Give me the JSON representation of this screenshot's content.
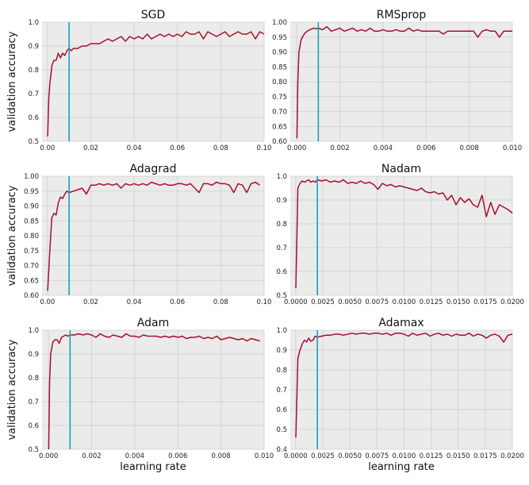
{
  "chart_data": [
    {
      "type": "line",
      "title": "SGD",
      "xlabel": "",
      "ylabel": "validation accuracy",
      "xlim": [
        -0.0025,
        0.1
      ],
      "ylim": [
        0.5,
        1.0
      ],
      "xticks": [
        0.0,
        0.02,
        0.04,
        0.06,
        0.08,
        0.1
      ],
      "xtick_labels": [
        "0.00",
        "0.02",
        "0.04",
        "0.06",
        "0.08",
        "0.10"
      ],
      "yticks": [
        0.5,
        0.6,
        0.7,
        0.8,
        0.9,
        1.0
      ],
      "ytick_labels": [
        "0.5",
        "0.6",
        "0.7",
        "0.8",
        "0.9",
        "1.0"
      ],
      "vline": 0.01,
      "grid": true,
      "x": [
        0.0001,
        0.0006,
        0.0011,
        0.0016,
        0.0021,
        0.003,
        0.004,
        0.005,
        0.006,
        0.007,
        0.008,
        0.009,
        0.01,
        0.011,
        0.012,
        0.014,
        0.016,
        0.018,
        0.02,
        0.022,
        0.024,
        0.026,
        0.028,
        0.03,
        0.032,
        0.034,
        0.036,
        0.038,
        0.04,
        0.042,
        0.044,
        0.046,
        0.048,
        0.05,
        0.052,
        0.054,
        0.056,
        0.058,
        0.06,
        0.062,
        0.064,
        0.066,
        0.068,
        0.07,
        0.072,
        0.074,
        0.076,
        0.078,
        0.08,
        0.082,
        0.084,
        0.086,
        0.088,
        0.09,
        0.092,
        0.094,
        0.096,
        0.098,
        0.1
      ],
      "y": [
        0.52,
        0.68,
        0.74,
        0.78,
        0.82,
        0.84,
        0.84,
        0.87,
        0.85,
        0.87,
        0.86,
        0.88,
        0.89,
        0.88,
        0.89,
        0.89,
        0.9,
        0.9,
        0.91,
        0.91,
        0.91,
        0.92,
        0.93,
        0.92,
        0.93,
        0.94,
        0.92,
        0.94,
        0.93,
        0.94,
        0.93,
        0.95,
        0.93,
        0.94,
        0.95,
        0.94,
        0.95,
        0.94,
        0.95,
        0.94,
        0.96,
        0.95,
        0.95,
        0.96,
        0.93,
        0.96,
        0.95,
        0.94,
        0.95,
        0.96,
        0.94,
        0.95,
        0.96,
        0.95,
        0.95,
        0.96,
        0.93,
        0.96,
        0.95
      ]
    },
    {
      "type": "line",
      "title": "RMSprop",
      "xlabel": "",
      "ylabel": "",
      "xlim": [
        -0.0003,
        0.01
      ],
      "ylim": [
        0.6,
        1.0
      ],
      "xticks": [
        0.0,
        0.002,
        0.004,
        0.006,
        0.008,
        0.01
      ],
      "xtick_labels": [
        "0.000",
        "0.002",
        "0.004",
        "0.006",
        "0.008",
        "0.010"
      ],
      "yticks": [
        0.6,
        0.65,
        0.7,
        0.75,
        0.8,
        0.85,
        0.9,
        0.95,
        1.0
      ],
      "ytick_labels": [
        "0.60",
        "0.65",
        "0.70",
        "0.75",
        "0.80",
        "0.85",
        "0.90",
        "0.95",
        "1.00"
      ],
      "vline": 0.001,
      "grid": true,
      "x": [
        1e-05,
        5e-05,
        0.0001,
        0.0002,
        0.0003,
        0.0004,
        0.0005,
        0.0006,
        0.0007,
        0.0008,
        0.0009,
        0.001,
        0.0012,
        0.0014,
        0.0016,
        0.0018,
        0.002,
        0.0022,
        0.0024,
        0.0026,
        0.0028,
        0.003,
        0.0032,
        0.0034,
        0.0036,
        0.0038,
        0.004,
        0.0042,
        0.0044,
        0.0046,
        0.0048,
        0.005,
        0.0052,
        0.0054,
        0.0056,
        0.0058,
        0.006,
        0.0062,
        0.0064,
        0.0066,
        0.0068,
        0.007,
        0.0072,
        0.0074,
        0.0076,
        0.0078,
        0.008,
        0.0082,
        0.0084,
        0.0086,
        0.0088,
        0.009,
        0.0092,
        0.0094,
        0.0096,
        0.0098,
        0.01
      ],
      "y": [
        0.61,
        0.8,
        0.9,
        0.94,
        0.955,
        0.965,
        0.97,
        0.975,
        0.978,
        0.98,
        0.978,
        0.98,
        0.975,
        0.985,
        0.97,
        0.975,
        0.98,
        0.97,
        0.975,
        0.98,
        0.97,
        0.975,
        0.97,
        0.98,
        0.97,
        0.97,
        0.975,
        0.97,
        0.97,
        0.975,
        0.97,
        0.97,
        0.98,
        0.97,
        0.975,
        0.97,
        0.97,
        0.97,
        0.97,
        0.97,
        0.96,
        0.97,
        0.97,
        0.97,
        0.97,
        0.97,
        0.97,
        0.97,
        0.95,
        0.97,
        0.975,
        0.97,
        0.97,
        0.95,
        0.97,
        0.97,
        0.97
      ]
    },
    {
      "type": "line",
      "title": "Adagrad",
      "xlabel": "",
      "ylabel": "validation accuracy",
      "xlim": [
        -0.0025,
        0.1
      ],
      "ylim": [
        0.6,
        1.0
      ],
      "xticks": [
        0.0,
        0.02,
        0.04,
        0.06,
        0.08,
        0.1
      ],
      "xtick_labels": [
        "0.00",
        "0.02",
        "0.04",
        "0.06",
        "0.08",
        "0.10"
      ],
      "yticks": [
        0.6,
        0.65,
        0.7,
        0.75,
        0.8,
        0.85,
        0.9,
        0.95,
        1.0
      ],
      "ytick_labels": [
        "0.60",
        "0.65",
        "0.70",
        "0.75",
        "0.80",
        "0.85",
        "0.90",
        "0.95",
        "1.00"
      ],
      "vline": 0.01,
      "grid": true,
      "x": [
        0.0001,
        0.001,
        0.002,
        0.003,
        0.004,
        0.005,
        0.006,
        0.007,
        0.008,
        0.009,
        0.01,
        0.012,
        0.014,
        0.016,
        0.018,
        0.02,
        0.022,
        0.024,
        0.026,
        0.028,
        0.03,
        0.032,
        0.034,
        0.036,
        0.038,
        0.04,
        0.042,
        0.044,
        0.046,
        0.048,
        0.05,
        0.052,
        0.054,
        0.056,
        0.058,
        0.06,
        0.062,
        0.064,
        0.066,
        0.068,
        0.07,
        0.072,
        0.074,
        0.076,
        0.078,
        0.08,
        0.082,
        0.084,
        0.086,
        0.088,
        0.09,
        0.092,
        0.094,
        0.096,
        0.098
      ],
      "y": [
        0.615,
        0.74,
        0.86,
        0.875,
        0.87,
        0.91,
        0.93,
        0.925,
        0.94,
        0.95,
        0.945,
        0.95,
        0.955,
        0.96,
        0.94,
        0.97,
        0.97,
        0.975,
        0.97,
        0.975,
        0.97,
        0.975,
        0.96,
        0.975,
        0.97,
        0.975,
        0.97,
        0.975,
        0.97,
        0.98,
        0.975,
        0.97,
        0.975,
        0.97,
        0.97,
        0.975,
        0.975,
        0.97,
        0.975,
        0.96,
        0.945,
        0.975,
        0.975,
        0.97,
        0.98,
        0.975,
        0.975,
        0.97,
        0.945,
        0.975,
        0.97,
        0.945,
        0.975,
        0.98,
        0.97
      ]
    },
    {
      "type": "line",
      "title": "Nadam",
      "xlabel": "",
      "ylabel": "",
      "xlim": [
        -0.0005,
        0.02
      ],
      "ylim": [
        0.5,
        1.0
      ],
      "xticks": [
        0.0,
        0.0025,
        0.005,
        0.0075,
        0.01,
        0.0125,
        0.015,
        0.0175,
        0.02
      ],
      "xtick_labels": [
        "0.0000",
        "0.0025",
        "0.0050",
        "0.0075",
        "0.0100",
        "0.0125",
        "0.0150",
        "0.0175",
        "0.0200"
      ],
      "yticks": [
        0.5,
        0.6,
        0.7,
        0.8,
        0.9,
        1.0
      ],
      "ytick_labels": [
        "0.5",
        "0.6",
        "0.7",
        "0.8",
        "0.9",
        "1.0"
      ],
      "vline": 0.002,
      "grid": true,
      "x": [
        1e-05,
        0.0002,
        0.0004,
        0.0006,
        0.0008,
        0.001,
        0.0012,
        0.0014,
        0.0016,
        0.0018,
        0.002,
        0.0024,
        0.0028,
        0.0032,
        0.0036,
        0.004,
        0.0044,
        0.0048,
        0.0052,
        0.0056,
        0.006,
        0.0064,
        0.0068,
        0.0072,
        0.0076,
        0.008,
        0.0084,
        0.0088,
        0.0092,
        0.0096,
        0.01,
        0.0104,
        0.0108,
        0.0112,
        0.0116,
        0.012,
        0.0124,
        0.0128,
        0.0132,
        0.0136,
        0.014,
        0.0144,
        0.0148,
        0.0152,
        0.0156,
        0.016,
        0.0164,
        0.0168,
        0.0172,
        0.0176,
        0.018,
        0.0184,
        0.0188,
        0.0192,
        0.0196,
        0.02
      ],
      "y": [
        0.53,
        0.95,
        0.97,
        0.98,
        0.975,
        0.98,
        0.985,
        0.975,
        0.98,
        0.975,
        0.985,
        0.98,
        0.985,
        0.975,
        0.98,
        0.975,
        0.985,
        0.97,
        0.975,
        0.97,
        0.98,
        0.97,
        0.975,
        0.965,
        0.945,
        0.97,
        0.96,
        0.965,
        0.955,
        0.96,
        0.955,
        0.95,
        0.945,
        0.94,
        0.95,
        0.935,
        0.93,
        0.935,
        0.925,
        0.93,
        0.9,
        0.92,
        0.88,
        0.91,
        0.89,
        0.905,
        0.88,
        0.87,
        0.92,
        0.83,
        0.89,
        0.84,
        0.88,
        0.87,
        0.86,
        0.845
      ]
    },
    {
      "type": "line",
      "title": "Adam",
      "xlabel": "learning rate",
      "ylabel": "validation accuracy",
      "xlim": [
        -0.0003,
        0.01
      ],
      "ylim": [
        0.5,
        1.0
      ],
      "xticks": [
        0.0,
        0.002,
        0.004,
        0.006,
        0.008,
        0.01
      ],
      "xtick_labels": [
        "0.000",
        "0.002",
        "0.004",
        "0.006",
        "0.008",
        "0.010"
      ],
      "yticks": [
        0.5,
        0.6,
        0.7,
        0.8,
        0.9,
        1.0
      ],
      "ytick_labels": [
        "0.5",
        "0.6",
        "0.7",
        "0.8",
        "0.9",
        "1.0"
      ],
      "vline": 0.001,
      "grid": true,
      "x": [
        1e-05,
        5e-05,
        0.0001,
        0.0002,
        0.0003,
        0.0004,
        0.0005,
        0.0006,
        0.0007,
        0.0008,
        0.0009,
        0.001,
        0.0012,
        0.0014,
        0.0016,
        0.0018,
        0.002,
        0.0022,
        0.0024,
        0.0026,
        0.0028,
        0.003,
        0.0032,
        0.0034,
        0.0036,
        0.0038,
        0.004,
        0.0042,
        0.0044,
        0.0046,
        0.0048,
        0.005,
        0.0052,
        0.0054,
        0.0056,
        0.0058,
        0.006,
        0.0062,
        0.0064,
        0.0066,
        0.0068,
        0.007,
        0.0072,
        0.0074,
        0.0076,
        0.0078,
        0.008,
        0.0082,
        0.0084,
        0.0086,
        0.0088,
        0.009,
        0.0092,
        0.0094,
        0.0096,
        0.0098
      ],
      "y": [
        0.5,
        0.78,
        0.9,
        0.95,
        0.96,
        0.96,
        0.945,
        0.97,
        0.975,
        0.98,
        0.975,
        0.98,
        0.98,
        0.985,
        0.98,
        0.985,
        0.98,
        0.97,
        0.985,
        0.975,
        0.97,
        0.98,
        0.975,
        0.97,
        0.985,
        0.975,
        0.975,
        0.97,
        0.98,
        0.975,
        0.975,
        0.975,
        0.97,
        0.975,
        0.97,
        0.975,
        0.97,
        0.975,
        0.965,
        0.97,
        0.97,
        0.975,
        0.965,
        0.97,
        0.965,
        0.975,
        0.96,
        0.965,
        0.97,
        0.965,
        0.96,
        0.965,
        0.955,
        0.965,
        0.96,
        0.955
      ]
    },
    {
      "type": "line",
      "title": "Adamax",
      "xlabel": "learning rate",
      "ylabel": "",
      "xlim": [
        -0.0005,
        0.02
      ],
      "ylim": [
        0.4,
        1.0
      ],
      "xticks": [
        0.0,
        0.0025,
        0.005,
        0.0075,
        0.01,
        0.0125,
        0.015,
        0.0175,
        0.02
      ],
      "xtick_labels": [
        "0.0000",
        "0.0025",
        "0.0050",
        "0.0075",
        "0.0100",
        "0.0125",
        "0.0150",
        "0.0175",
        "0.0200"
      ],
      "yticks": [
        0.4,
        0.5,
        0.6,
        0.7,
        0.8,
        0.9,
        1.0
      ],
      "ytick_labels": [
        "0.4",
        "0.5",
        "0.6",
        "0.7",
        "0.8",
        "0.9",
        "1.0"
      ],
      "vline": 0.002,
      "grid": true,
      "x": [
        1e-05,
        0.0002,
        0.0004,
        0.0006,
        0.0008,
        0.001,
        0.0012,
        0.0014,
        0.0016,
        0.0018,
        0.002,
        0.0024,
        0.0028,
        0.0032,
        0.0036,
        0.004,
        0.0044,
        0.0048,
        0.0052,
        0.0056,
        0.006,
        0.0064,
        0.0068,
        0.0072,
        0.0076,
        0.008,
        0.0084,
        0.0088,
        0.0092,
        0.0096,
        0.01,
        0.0104,
        0.0108,
        0.0112,
        0.0116,
        0.012,
        0.0124,
        0.0128,
        0.0132,
        0.0136,
        0.014,
        0.0144,
        0.0148,
        0.0152,
        0.0156,
        0.016,
        0.0164,
        0.0168,
        0.0172,
        0.0176,
        0.018,
        0.0184,
        0.0188,
        0.0192,
        0.0196,
        0.02
      ],
      "y": [
        0.46,
        0.86,
        0.9,
        0.93,
        0.95,
        0.94,
        0.96,
        0.945,
        0.95,
        0.97,
        0.965,
        0.97,
        0.975,
        0.975,
        0.98,
        0.98,
        0.975,
        0.98,
        0.985,
        0.98,
        0.985,
        0.985,
        0.98,
        0.985,
        0.985,
        0.98,
        0.985,
        0.975,
        0.985,
        0.985,
        0.98,
        0.97,
        0.985,
        0.975,
        0.98,
        0.985,
        0.97,
        0.98,
        0.985,
        0.975,
        0.98,
        0.97,
        0.98,
        0.975,
        0.975,
        0.985,
        0.97,
        0.98,
        0.975,
        0.96,
        0.975,
        0.98,
        0.97,
        0.94,
        0.975,
        0.98
      ]
    }
  ]
}
